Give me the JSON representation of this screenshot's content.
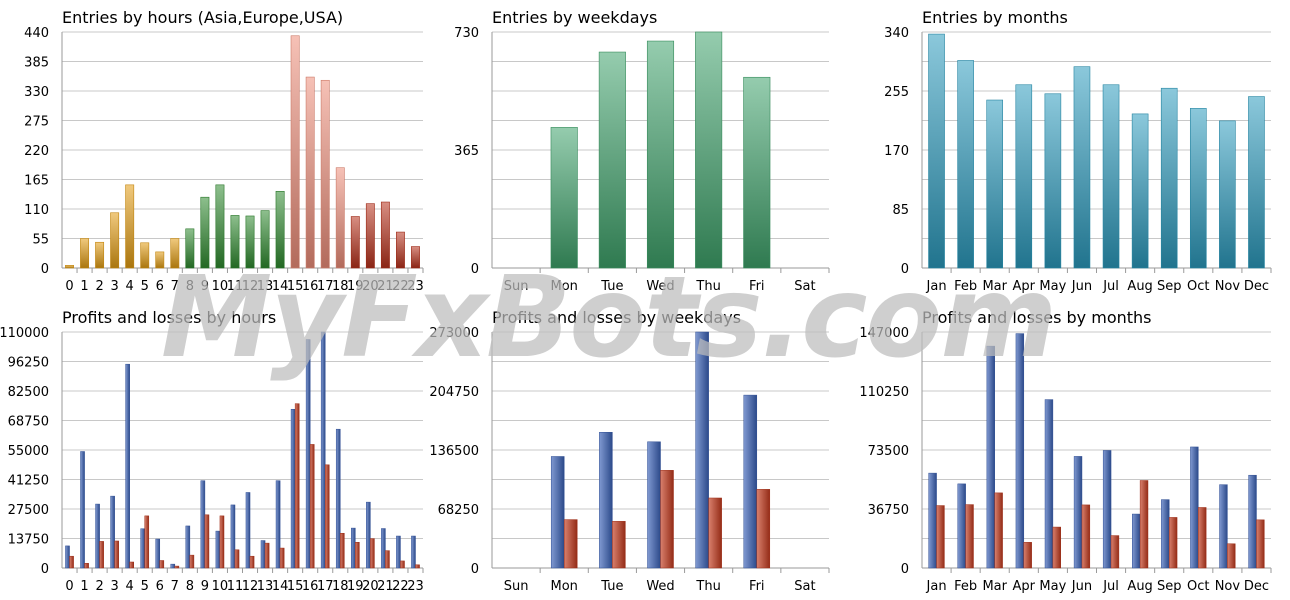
{
  "watermark": "MyFxBots.com",
  "chart_data": [
    {
      "type": "bar",
      "title": "Entries by hours (Asia,Europe,USA)",
      "categories": [
        "0",
        "1",
        "2",
        "3",
        "4",
        "5",
        "6",
        "7",
        "8",
        "9",
        "10",
        "11",
        "12",
        "13",
        "14",
        "15",
        "16",
        "17",
        "18",
        "19",
        "20",
        "21",
        "22",
        "23"
      ],
      "values": [
        5,
        55,
        48,
        103,
        155,
        47,
        30,
        55,
        73,
        132,
        155,
        98,
        97,
        107,
        143,
        433,
        356,
        350,
        187,
        96,
        120,
        123,
        67,
        40
      ],
      "bar_colors": [
        "#e39d12",
        "#e39d12",
        "#e39d12",
        "#e39d12",
        "#e39d12",
        "#e39d12",
        "#e39d12",
        "#e39d12",
        "#2f8a2f",
        "#2f8a2f",
        "#2f8a2f",
        "#2f8a2f",
        "#2f8a2f",
        "#2f8a2f",
        "#2f8a2f",
        "#ef8f7a",
        "#ef8f7a",
        "#ef8f7a",
        "#ef8f7a",
        "#b8311c",
        "#b8311c",
        "#b8311c",
        "#b8311c",
        "#b8311c"
      ],
      "ylim": [
        0,
        440
      ],
      "yticks": [
        "0",
        "55",
        "110",
        "165",
        "220",
        "275",
        "330",
        "385",
        "440"
      ],
      "grid": true
    },
    {
      "type": "bar",
      "title": "Entries by weekdays",
      "categories": [
        "Sun",
        "Mon",
        "Tue",
        "Wed",
        "Thu",
        "Fri",
        "Sat"
      ],
      "values": [
        0,
        435,
        668,
        702,
        730,
        590,
        0
      ],
      "bar_color": "#3fa36b",
      "ylim": [
        0,
        730
      ],
      "yticks": [
        "0",
        "365",
        "730"
      ],
      "grid": true
    },
    {
      "type": "bar",
      "title": "Entries by months",
      "categories": [
        "Jan",
        "Feb",
        "Mar",
        "Apr",
        "May",
        "Jun",
        "Jul",
        "Aug",
        "Sep",
        "Oct",
        "Nov",
        "Dec"
      ],
      "values": [
        337,
        299,
        242,
        264,
        251,
        290,
        264,
        222,
        259,
        230,
        212,
        247
      ],
      "bar_color": "#2c9bbd",
      "ylim": [
        0,
        340
      ],
      "yticks": [
        "0",
        "85",
        "170",
        "255",
        "340"
      ],
      "grid": true
    },
    {
      "type": "bar",
      "title": "Profits and losses by hours",
      "categories": [
        "0",
        "1",
        "2",
        "3",
        "4",
        "5",
        "6",
        "7",
        "8",
        "9",
        "10",
        "11",
        "12",
        "13",
        "14",
        "15",
        "16",
        "17",
        "18",
        "19",
        "20",
        "21",
        "22",
        "23"
      ],
      "series": [
        {
          "values": [
            10300,
            54300,
            29800,
            33500,
            95000,
            18300,
            13500,
            1800,
            19600,
            40700,
            17200,
            29400,
            35200,
            12800,
            40700,
            74000,
            106500,
            110000,
            64700,
            18600,
            30700,
            18400,
            14900,
            14900
          ],
          "color": "#3b62b8"
        },
        {
          "values": [
            5500,
            2200,
            12400,
            12600,
            2800,
            24300,
            3500,
            900,
            6000,
            24800,
            24300,
            8500,
            5500,
            11600,
            9300,
            76600,
            57600,
            48100,
            16200,
            12000,
            13700,
            8100,
            3300,
            1500
          ],
          "color": "#c53b1f"
        }
      ],
      "ylim": [
        0,
        110000
      ],
      "yticks": [
        "0",
        "13750",
        "27500",
        "41250",
        "55000",
        "68750",
        "82500",
        "96250",
        "110000"
      ],
      "grid": true
    },
    {
      "type": "bar",
      "title": "Profits and losses by weekdays",
      "categories": [
        "Sun",
        "Mon",
        "Tue",
        "Wed",
        "Thu",
        "Fri",
        "Sat"
      ],
      "series": [
        {
          "values": [
            0,
            129000,
            157000,
            146000,
            273000,
            200000,
            0
          ],
          "color": "#3b62b8"
        },
        {
          "values": [
            0,
            56000,
            54000,
            113000,
            81000,
            91000,
            0
          ],
          "color": "#c53b1f"
        }
      ],
      "ylim": [
        0,
        273000
      ],
      "yticks": [
        "0",
        "68250",
        "136500",
        "204750",
        "273000"
      ],
      "grid": true
    },
    {
      "type": "bar",
      "title": "Profits and losses by months",
      "categories": [
        "Jan",
        "Feb",
        "Mar",
        "Apr",
        "May",
        "Jun",
        "Jul",
        "Aug",
        "Sep",
        "Oct",
        "Nov",
        "Dec"
      ],
      "series": [
        {
          "values": [
            59100,
            52400,
            138200,
            146000,
            104900,
            69500,
            73200,
            33600,
            42600,
            75400,
            51900,
            57800
          ],
          "color": "#3b62b8"
        },
        {
          "values": [
            38900,
            39500,
            46800,
            16000,
            25500,
            39300,
            20200,
            54500,
            31500,
            37700,
            15100,
            30000
          ],
          "color": "#c53b1f"
        }
      ],
      "ylim": [
        0,
        147000
      ],
      "yticks": [
        "0",
        "36750",
        "73500",
        "110250",
        "147000"
      ],
      "grid": true
    }
  ]
}
